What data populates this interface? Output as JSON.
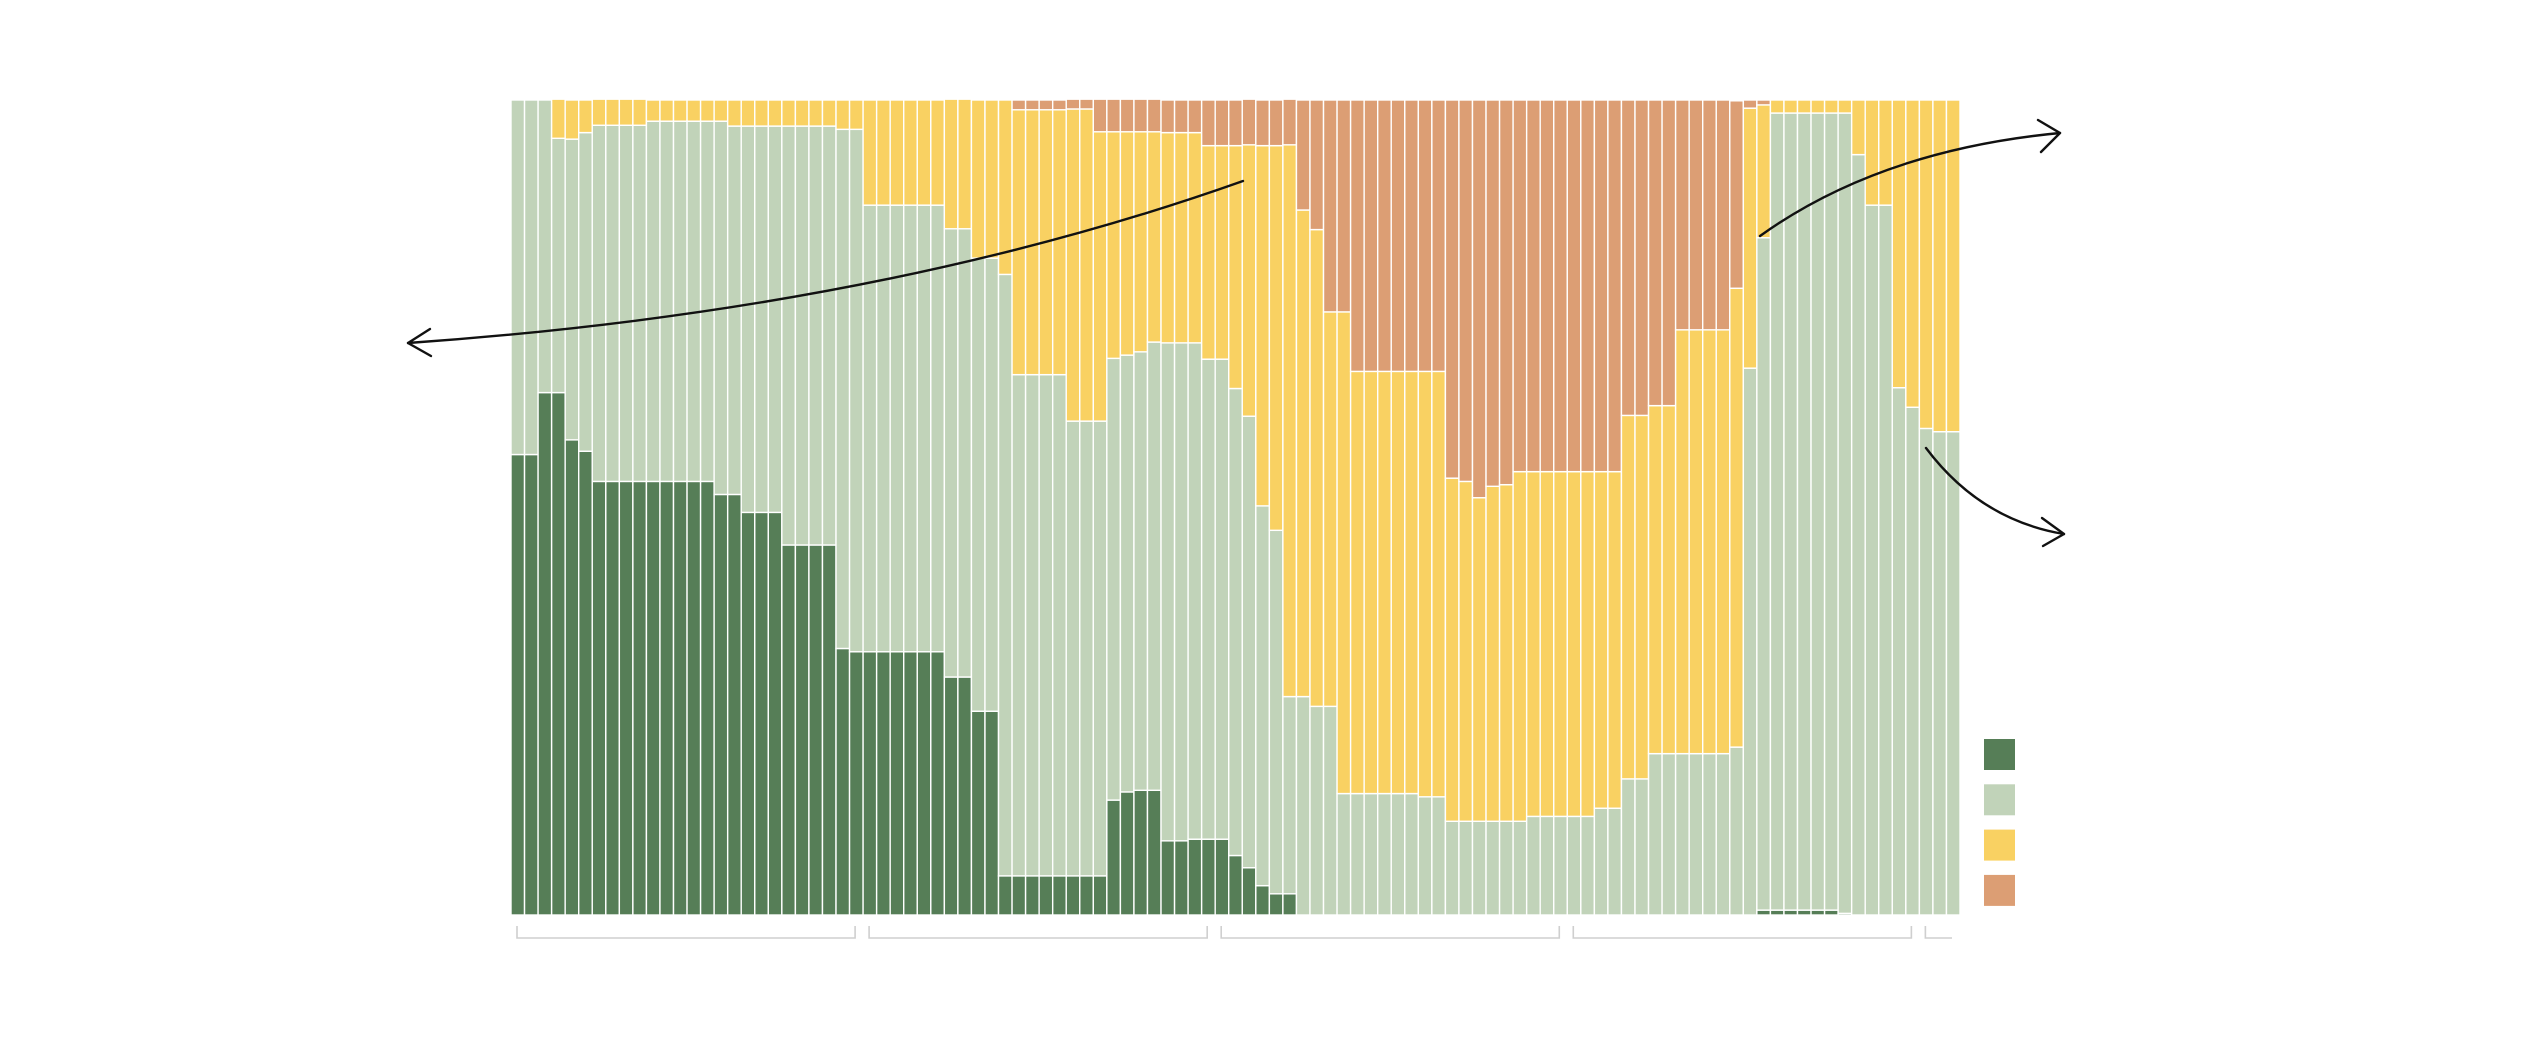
{
  "chart_data": {
    "type": "stacked_bar",
    "categories": [
      null,
      null,
      null,
      null,
      null,
      null,
      null,
      null,
      null,
      null,
      null,
      null,
      null,
      null,
      null,
      null,
      null,
      null,
      null,
      null,
      null,
      null,
      null,
      null,
      null,
      null,
      null,
      null,
      null,
      null,
      null,
      null,
      null,
      null,
      null,
      null,
      null,
      null,
      null,
      null,
      null,
      null,
      null,
      null,
      null,
      null,
      null,
      null,
      null,
      null,
      null,
      null,
      null,
      null,
      null,
      null,
      null,
      null,
      null,
      null,
      null,
      null,
      null,
      null,
      null,
      null,
      null,
      null,
      null,
      null,
      null,
      null,
      null,
      null,
      null,
      null,
      null,
      null,
      null,
      null,
      null,
      null,
      null,
      null,
      null,
      null,
      null,
      null,
      null,
      null,
      null,
      null,
      null,
      null,
      null,
      null,
      null,
      null,
      null,
      null,
      null,
      null,
      null,
      null,
      null,
      null,
      null
    ],
    "series": [
      {
        "color": "#567e57",
        "values": [
          56.5,
          56.5,
          64.1,
          64.1,
          58.3,
          56.9,
          53.2,
          53.2,
          53.2,
          53.2,
          53.2,
          53.2,
          53.2,
          53.2,
          53.2,
          51.6,
          51.6,
          49.4,
          49.4,
          49.4,
          45.4,
          45.4,
          45.4,
          45.4,
          32.7,
          32.3,
          32.3,
          32.3,
          32.3,
          32.3,
          32.3,
          32.3,
          29.2,
          29.2,
          25.0,
          25.0,
          4.8,
          4.8,
          4.8,
          4.8,
          4.8,
          4.8,
          4.8,
          4.8,
          14.1,
          15.1,
          15.3,
          15.3,
          9.1,
          9.1,
          9.3,
          9.3,
          9.3,
          7.3,
          5.8,
          3.6,
          2.6,
          2.6,
          0,
          0,
          0,
          0,
          0,
          0,
          0,
          0,
          0,
          0,
          0,
          0,
          0,
          0,
          0,
          0,
          0,
          0,
          0,
          0,
          0,
          0,
          0,
          0,
          0,
          0,
          0,
          0,
          0,
          0,
          0,
          0,
          0,
          0,
          0.6,
          0.6,
          0.6,
          0.6,
          0.6,
          0.6,
          0.2,
          0,
          0,
          0,
          0,
          0,
          0,
          0,
          0
        ]
      },
      {
        "color": "#c1d3b9",
        "values": [
          43.5,
          43.5,
          35.9,
          31.2,
          36.9,
          39.1,
          43.7,
          43.7,
          43.7,
          43.7,
          44.2,
          44.2,
          44.2,
          44.2,
          44.2,
          45.8,
          45.2,
          47.4,
          47.4,
          47.4,
          51.4,
          51.4,
          51.4,
          51.4,
          63.7,
          64.1,
          54.8,
          54.8,
          54.8,
          54.8,
          54.8,
          54.8,
          55.0,
          55.0,
          55.6,
          55.6,
          73.8,
          61.5,
          61.5,
          61.5,
          61.5,
          55.8,
          55.8,
          55.8,
          54.2,
          53.6,
          53.8,
          55.0,
          61.1,
          61.1,
          60.9,
          58.9,
          58.9,
          57.3,
          55.4,
          46.6,
          44.6,
          24.2,
          26.8,
          25.6,
          25.6,
          14.9,
          14.9,
          14.9,
          14.9,
          14.9,
          14.9,
          14.5,
          14.5,
          11.5,
          11.5,
          11.5,
          11.5,
          11.5,
          11.5,
          12.1,
          12.1,
          12.1,
          12.1,
          12.1,
          13.1,
          13.1,
          16.7,
          16.7,
          19.8,
          19.8,
          19.8,
          19.8,
          19.8,
          19.8,
          20.6,
          67.1,
          82.5,
          97.8,
          97.8,
          97.8,
          97.8,
          97.8,
          98.2,
          93.3,
          87.1,
          87.1,
          64.7,
          62.3,
          59.7,
          59.3,
          59.3
        ]
      },
      {
        "color": "#f9d162",
        "values": [
          0,
          0,
          0,
          4.8,
          4.8,
          4.0,
          3.2,
          3.2,
          3.2,
          3.2,
          2.6,
          2.6,
          2.6,
          2.6,
          2.6,
          2.6,
          3.2,
          3.2,
          3.2,
          3.2,
          3.2,
          3.2,
          3.2,
          3.2,
          3.6,
          3.6,
          12.9,
          12.9,
          12.9,
          12.9,
          12.9,
          12.9,
          15.9,
          15.9,
          19.4,
          19.4,
          21.4,
          32.5,
          32.5,
          32.5,
          32.5,
          38.3,
          38.3,
          35.5,
          27.8,
          27.4,
          27.0,
          25.8,
          25.8,
          25.8,
          25.8,
          26.2,
          26.2,
          29.8,
          33.3,
          44.2,
          47.2,
          67.7,
          59.7,
          58.5,
          48.4,
          59.1,
          51.8,
          51.8,
          51.8,
          51.8,
          51.8,
          52.2,
          52.2,
          42.1,
          41.7,
          39.7,
          41.1,
          41.3,
          42.9,
          42.3,
          42.3,
          42.3,
          42.3,
          42.3,
          41.3,
          41.3,
          44.6,
          44.6,
          42.7,
          42.7,
          52.0,
          52.0,
          52.0,
          52.0,
          56.3,
          31.9,
          16.3,
          1.6,
          1.6,
          1.6,
          1.6,
          1.6,
          1.6,
          6.7,
          12.9,
          12.9,
          35.3,
          37.7,
          40.3,
          40.7,
          40.7
        ]
      },
      {
        "color": "#dc9e74",
        "values": [
          0,
          0,
          0,
          0,
          0,
          0,
          0,
          0,
          0,
          0,
          0,
          0,
          0,
          0,
          0,
          0,
          0,
          0,
          0,
          0,
          0,
          0,
          0,
          0,
          0,
          0,
          0,
          0,
          0,
          0,
          0,
          0,
          0,
          0,
          0,
          0,
          0,
          1.2,
          1.2,
          1.2,
          1.2,
          1.2,
          1.2,
          4.0,
          4.0,
          4.0,
          4.0,
          4.0,
          4.0,
          4.0,
          4.0,
          5.6,
          5.6,
          5.6,
          5.6,
          5.6,
          5.6,
          5.6,
          13.5,
          15.9,
          26.0,
          26.0,
          33.3,
          33.3,
          33.3,
          33.3,
          33.3,
          33.3,
          33.3,
          46.4,
          46.8,
          48.8,
          47.4,
          47.2,
          45.6,
          45.6,
          45.6,
          45.6,
          45.6,
          45.6,
          45.6,
          45.6,
          38.7,
          38.7,
          37.5,
          37.5,
          28.2,
          28.2,
          28.2,
          28.2,
          23.0,
          1.0,
          0.6,
          0,
          0,
          0,
          0,
          0,
          0,
          0,
          0,
          0,
          0,
          0,
          0,
          0,
          0
        ]
      }
    ],
    "ylim": [
      0,
      100
    ]
  }
}
